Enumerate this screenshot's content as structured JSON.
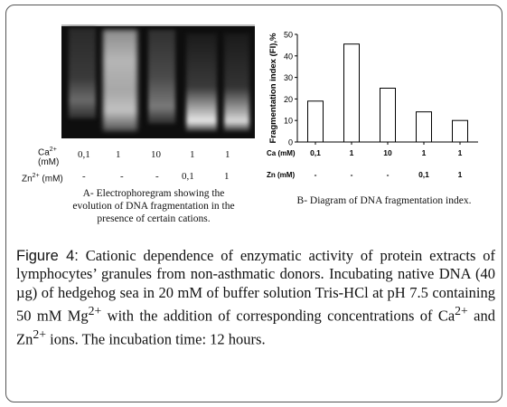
{
  "panel_a": {
    "row1_label": "Ca2+ (mM)",
    "row2_label": "Zn2+ (mM)",
    "ca_values": [
      "0,1",
      "1",
      "10",
      "1",
      "1"
    ],
    "zn_values": [
      "-",
      "-",
      "-",
      "0,1",
      "1"
    ],
    "caption_lines": [
      "A- Electrophoregram showing the",
      "evolution of DNA fragmentation in the",
      "presence of certain cations."
    ]
  },
  "panel_b": {
    "caption": "B- Diagram of DNA fragmentation index."
  },
  "chart_data": {
    "type": "bar",
    "categories": [
      "0,1 / -",
      "1 / -",
      "10 / -",
      "1 / 0,1",
      "1 / 1"
    ],
    "values": [
      19,
      45.5,
      25,
      14,
      10
    ],
    "ylabel": "Fragmentation index (FI),%",
    "ylim": [
      0,
      50
    ],
    "yticks": [
      0,
      10,
      20,
      30,
      40,
      50
    ],
    "row1_label": "Ca (mM)",
    "row2_label": "Zn (mM)",
    "ca_values": [
      "0,1",
      "1",
      "10",
      "1",
      "1"
    ],
    "zn_values": [
      "-",
      "-",
      "-",
      "0,1",
      "1"
    ],
    "grid": false,
    "bar_color": "#ffffff",
    "bar_stroke": "#000000"
  },
  "figure_caption": {
    "label": "Figure 4:",
    "text_before_mg": "Cationic dependence of enzymatic activity of protein extracts of lymphocytes’ granules from non-asthmatic donors. Incubating native DNA (40 µg) of hedgehog sea in 20 mM of buffer solution Tris-HCl at pH 7.5 containing 50 mM Mg",
    "mg_sup": "2+",
    "text_mid": " with the addition of corresponding concentrations of Ca",
    "ca_sup": "2+",
    "text_and": " and Zn",
    "zn_sup": "2+",
    "text_end": " ions. The incubation time: 12 hours."
  }
}
